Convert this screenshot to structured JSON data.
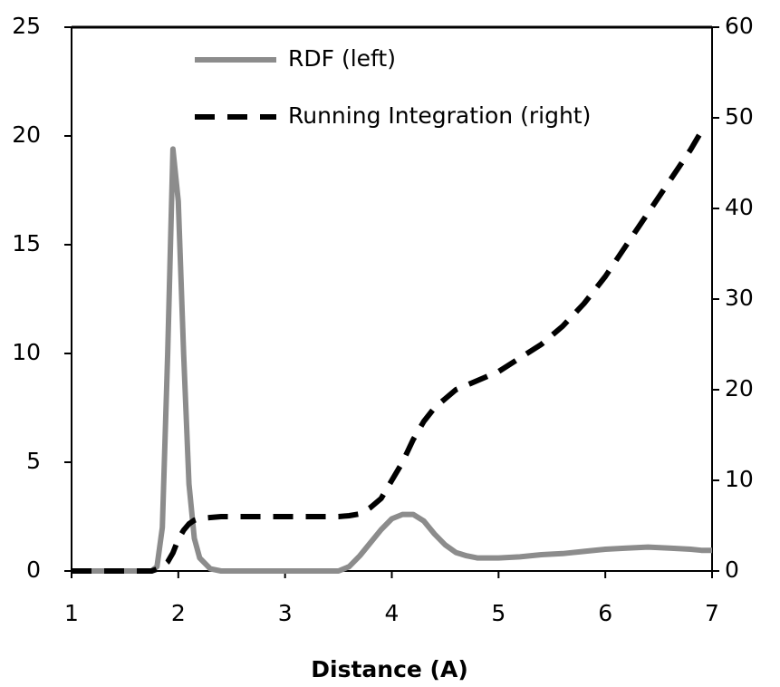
{
  "chart_data": {
    "type": "line",
    "x_label": "Distance (A)",
    "x": [
      1.0,
      1.5,
      1.75,
      1.8,
      1.85,
      1.9,
      1.95,
      2.0,
      2.05,
      2.1,
      2.15,
      2.2,
      2.3,
      2.4,
      3.0,
      3.5,
      3.6,
      3.7,
      3.8,
      3.9,
      4.0,
      4.1,
      4.2,
      4.3,
      4.4,
      4.5,
      4.6,
      4.7,
      4.8,
      5.0,
      5.2,
      5.4,
      5.6,
      5.8,
      6.0,
      6.2,
      6.4,
      6.6,
      6.8,
      6.9,
      7.0
    ],
    "series": [
      {
        "name": "RDF (left)",
        "color": "#8c8c8c",
        "dash": false,
        "values": [
          0,
          0,
          0,
          0.2,
          2,
          10,
          19.4,
          17,
          10,
          4,
          1.5,
          0.6,
          0.1,
          0,
          0,
          0,
          0.2,
          0.7,
          1.3,
          1.9,
          2.4,
          2.6,
          2.6,
          2.3,
          1.7,
          1.2,
          0.85,
          0.7,
          0.6,
          0.6,
          0.65,
          0.75,
          0.8,
          0.9,
          1.0,
          1.05,
          1.1,
          1.05,
          1.0,
          0.95,
          0.95
        ]
      },
      {
        "name": "Running Integration (right)",
        "color": "#000000",
        "dash": true,
        "axis": "y2",
        "values": [
          0,
          0,
          0,
          0.2,
          0.5,
          1,
          2,
          3.5,
          4.5,
          5.2,
          5.6,
          5.8,
          5.9,
          6,
          6,
          6,
          6.1,
          6.3,
          7,
          8,
          10,
          12,
          14.5,
          16.5,
          18,
          19,
          20,
          20.5,
          21,
          22,
          23.5,
          25,
          27,
          29.5,
          32.5,
          36,
          39.5,
          43,
          46.5,
          48.5,
          null
        ]
      }
    ],
    "xlim": [
      1,
      7
    ],
    "xticks": [
      1,
      2,
      3,
      4,
      5,
      6,
      7
    ],
    "ylim": [
      0,
      25
    ],
    "yticks": [
      0,
      5,
      10,
      15,
      20,
      25
    ],
    "y2lim": [
      0,
      60
    ],
    "y2ticks": [
      0,
      10,
      20,
      30,
      40,
      50,
      60
    ],
    "grid": false,
    "legend": "top"
  }
}
